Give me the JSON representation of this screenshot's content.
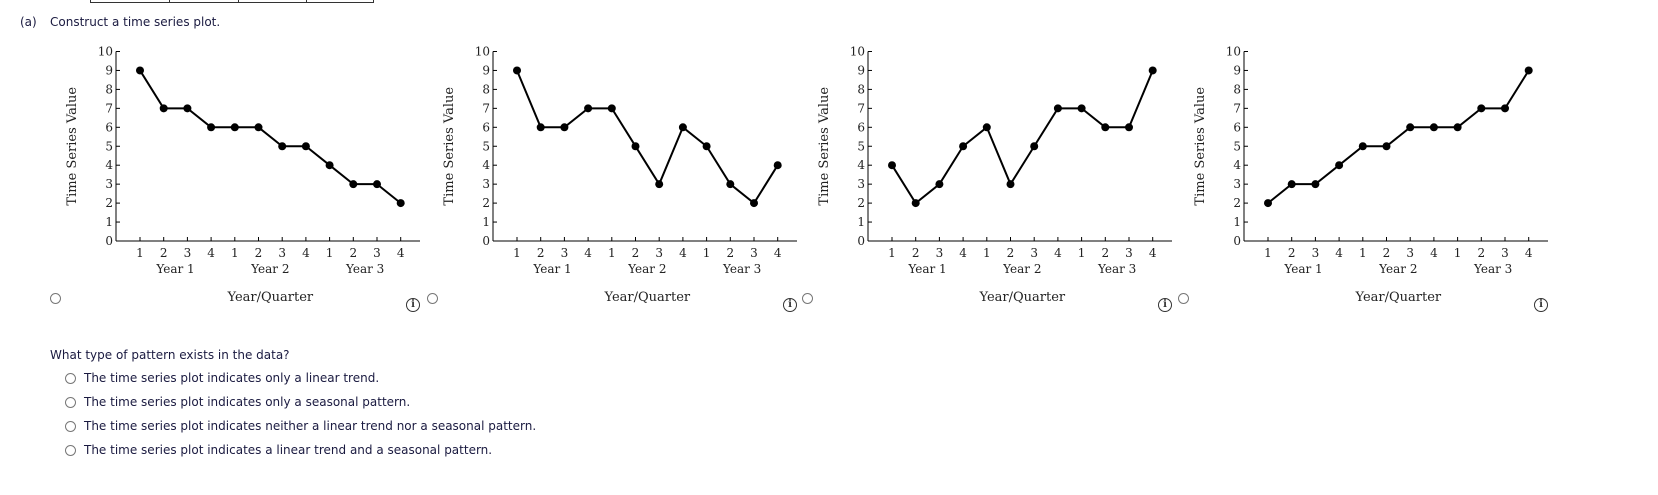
{
  "part_a": {
    "label": "(a)",
    "prompt": "Construct a time series plot."
  },
  "charts_common": {
    "ylabel": "Time Series Value",
    "xlabel": "Year/Quarter",
    "quarters": [
      "1",
      "2",
      "3",
      "4",
      "1",
      "2",
      "3",
      "4",
      "1",
      "2",
      "3",
      "4"
    ],
    "years": [
      "Year 1",
      "Year 2",
      "Year 3"
    ],
    "yticks": [
      "0",
      "1",
      "2",
      "3",
      "4",
      "5",
      "6",
      "7",
      "8",
      "9",
      "10"
    ]
  },
  "chart_data": [
    {
      "type": "line",
      "ylim": [
        0,
        10
      ],
      "x": [
        "Y1Q1",
        "Y1Q2",
        "Y1Q3",
        "Y1Q4",
        "Y2Q1",
        "Y2Q2",
        "Y2Q3",
        "Y2Q4",
        "Y3Q1",
        "Y3Q2",
        "Y3Q3",
        "Y3Q4"
      ],
      "values": [
        9,
        7,
        7,
        6,
        6,
        6,
        5,
        5,
        4,
        3,
        3,
        2
      ],
      "grid": false,
      "selected": false
    },
    {
      "type": "line",
      "ylim": [
        0,
        10
      ],
      "x": [
        "Y1Q1",
        "Y1Q2",
        "Y1Q3",
        "Y1Q4",
        "Y2Q1",
        "Y2Q2",
        "Y2Q3",
        "Y2Q4",
        "Y3Q1",
        "Y3Q2",
        "Y3Q3",
        "Y3Q4"
      ],
      "values": [
        9,
        6,
        6,
        7,
        7,
        5,
        3,
        6,
        5,
        3,
        2,
        4
      ],
      "grid": false,
      "selected": false
    },
    {
      "type": "line",
      "ylim": [
        0,
        10
      ],
      "x": [
        "Y1Q1",
        "Y1Q2",
        "Y1Q3",
        "Y1Q4",
        "Y2Q1",
        "Y2Q2",
        "Y2Q3",
        "Y2Q4",
        "Y3Q1",
        "Y3Q2",
        "Y3Q3",
        "Y3Q4"
      ],
      "values": [
        4,
        2,
        3,
        5,
        6,
        3,
        5,
        7,
        7,
        6,
        6,
        9
      ],
      "grid": false,
      "selected": false
    },
    {
      "type": "line",
      "ylim": [
        0,
        10
      ],
      "x": [
        "Y1Q1",
        "Y1Q2",
        "Y1Q3",
        "Y1Q4",
        "Y2Q1",
        "Y2Q2",
        "Y2Q3",
        "Y2Q4",
        "Y3Q1",
        "Y3Q2",
        "Y3Q3",
        "Y3Q4"
      ],
      "values": [
        2,
        3,
        3,
        4,
        5,
        5,
        6,
        6,
        6,
        7,
        7,
        9
      ],
      "grid": false,
      "selected": false
    }
  ],
  "info_icon": "i",
  "question": {
    "text": "What type of pattern exists in the data?",
    "options": [
      "The time series plot indicates only a linear trend.",
      "The time series plot indicates only a seasonal pattern.",
      "The time series plot indicates neither a linear trend nor a seasonal pattern.",
      "The time series plot indicates a linear trend and a seasonal pattern."
    ]
  },
  "colors": {
    "line": "#000000",
    "text": "#1a1a40"
  }
}
